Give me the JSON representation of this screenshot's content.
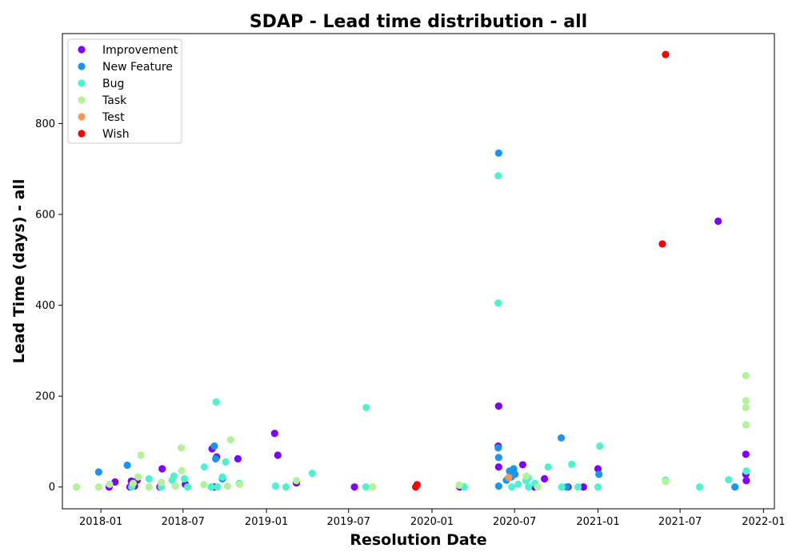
{
  "chart_data": {
    "type": "scatter",
    "title": "SDAP - Lead time distribution - all",
    "xlabel": "Resolution Date",
    "ylabel": "Lead Time (days) - all",
    "x_type": "date",
    "xlim": [
      "2017-10-08",
      "2022-01-25"
    ],
    "ylim": [
      -48,
      998
    ],
    "x_ticks": [
      {
        "value": "2018-01-01",
        "label": "2018-01"
      },
      {
        "value": "2018-07-01",
        "label": "2018-07"
      },
      {
        "value": "2019-01-01",
        "label": "2019-01"
      },
      {
        "value": "2019-07-01",
        "label": "2019-07"
      },
      {
        "value": "2020-01-01",
        "label": "2020-01"
      },
      {
        "value": "2020-07-01",
        "label": "2020-07"
      },
      {
        "value": "2021-01-01",
        "label": "2021-01"
      },
      {
        "value": "2021-07-01",
        "label": "2021-07"
      },
      {
        "value": "2022-01-01",
        "label": "2022-01"
      }
    ],
    "y_ticks": [
      {
        "value": 0,
        "label": "0"
      },
      {
        "value": 200,
        "label": "200"
      },
      {
        "value": 400,
        "label": "400"
      },
      {
        "value": 600,
        "label": "600"
      },
      {
        "value": 800,
        "label": "800"
      }
    ],
    "grid": false,
    "legend_position": "top-left",
    "series": [
      {
        "name": "Improvement",
        "color": "#8000ff",
        "points": [
          [
            "2018-01-19",
            0
          ],
          [
            "2018-02-01",
            11
          ],
          [
            "2018-03-06",
            0
          ],
          [
            "2018-03-09",
            13
          ],
          [
            "2018-03-16",
            2
          ],
          [
            "2018-03-22",
            15
          ],
          [
            "2018-05-11",
            0
          ],
          [
            "2018-05-16",
            40
          ],
          [
            "2018-07-06",
            6
          ],
          [
            "2018-09-03",
            84
          ],
          [
            "2018-09-13",
            66
          ],
          [
            "2018-09-08",
            0
          ],
          [
            "2018-10-30",
            62
          ],
          [
            "2019-01-19",
            118
          ],
          [
            "2019-01-26",
            70
          ],
          [
            "2019-03-08",
            9
          ],
          [
            "2019-07-14",
            0
          ],
          [
            "2020-03-02",
            0
          ],
          [
            "2020-05-26",
            90
          ],
          [
            "2020-05-27",
            178
          ],
          [
            "2020-05-27",
            44
          ],
          [
            "2020-07-19",
            49
          ],
          [
            "2020-08-14",
            0
          ],
          [
            "2020-09-05",
            18
          ],
          [
            "2020-10-27",
            0
          ],
          [
            "2020-11-30",
            0
          ],
          [
            "2021-01-01",
            40
          ],
          [
            "2021-09-23",
            585
          ],
          [
            "2021-11-23",
            72
          ],
          [
            "2021-11-23",
            28
          ],
          [
            "2021-11-24",
            14
          ]
        ]
      },
      {
        "name": "New Feature",
        "color": "#1996f3",
        "points": [
          [
            "2017-12-27",
            33
          ],
          [
            "2018-02-28",
            48
          ],
          [
            "2018-09-08",
            90
          ],
          [
            "2018-09-11",
            62
          ],
          [
            "2018-09-26",
            18
          ],
          [
            "2020-05-27",
            735
          ],
          [
            "2020-05-26",
            86
          ],
          [
            "2020-05-27",
            65
          ],
          [
            "2020-05-27",
            2
          ],
          [
            "2020-06-13",
            15
          ],
          [
            "2020-06-20",
            35
          ],
          [
            "2020-06-24",
            22
          ],
          [
            "2020-06-29",
            40
          ],
          [
            "2020-07-02",
            28
          ],
          [
            "2020-10-12",
            108
          ],
          [
            "2020-10-24",
            0
          ],
          [
            "2021-01-03",
            28
          ],
          [
            "2021-10-30",
            0
          ]
        ]
      },
      {
        "name": "Bug",
        "color": "#4df3ce",
        "points": [
          [
            "2018-03-10",
            0
          ],
          [
            "2018-04-17",
            18
          ],
          [
            "2018-05-14",
            0
          ],
          [
            "2018-06-07",
            15
          ],
          [
            "2018-06-11",
            24
          ],
          [
            "2018-07-04",
            18
          ],
          [
            "2018-07-11",
            0
          ],
          [
            "2018-08-17",
            44
          ],
          [
            "2018-09-01",
            0
          ],
          [
            "2018-09-12",
            187
          ],
          [
            "2018-09-15",
            0
          ],
          [
            "2018-09-26",
            22
          ],
          [
            "2018-10-03",
            55
          ],
          [
            "2018-11-02",
            8
          ],
          [
            "2019-01-21",
            2
          ],
          [
            "2019-02-13",
            0
          ],
          [
            "2019-04-12",
            30
          ],
          [
            "2019-08-09",
            175
          ],
          [
            "2019-08-08",
            0
          ],
          [
            "2020-03-12",
            0
          ],
          [
            "2020-05-26",
            685
          ],
          [
            "2020-05-26",
            405
          ],
          [
            "2020-06-25",
            0
          ],
          [
            "2020-07-09",
            6
          ],
          [
            "2020-07-26",
            14
          ],
          [
            "2020-07-31",
            20
          ],
          [
            "2020-08-01",
            0
          ],
          [
            "2020-08-15",
            8
          ],
          [
            "2020-09-13",
            44
          ],
          [
            "2020-10-13",
            0
          ],
          [
            "2020-11-04",
            50
          ],
          [
            "2020-11-18",
            0
          ],
          [
            "2021-01-01",
            0
          ],
          [
            "2021-01-05",
            90
          ],
          [
            "2021-05-30",
            15
          ],
          [
            "2021-08-13",
            0
          ],
          [
            "2021-10-16",
            16
          ],
          [
            "2021-11-24",
            35
          ]
        ]
      },
      {
        "name": "Task",
        "color": "#b2f396",
        "points": [
          [
            "2017-11-08",
            0
          ],
          [
            "2017-12-27",
            0
          ],
          [
            "2018-01-20",
            6
          ],
          [
            "2018-03-13",
            8
          ],
          [
            "2018-03-24",
            22
          ],
          [
            "2018-03-30",
            70
          ],
          [
            "2018-04-17",
            0
          ],
          [
            "2018-05-14",
            10
          ],
          [
            "2018-06-14",
            2
          ],
          [
            "2018-06-27",
            86
          ],
          [
            "2018-06-28",
            36
          ],
          [
            "2018-08-16",
            5
          ],
          [
            "2018-10-07",
            2
          ],
          [
            "2018-10-14",
            104
          ],
          [
            "2018-11-03",
            6
          ],
          [
            "2019-03-08",
            14
          ],
          [
            "2019-08-23",
            0
          ],
          [
            "2020-03-01",
            4
          ],
          [
            "2020-07-27",
            24
          ],
          [
            "2020-08-21",
            0
          ],
          [
            "2021-05-30",
            12
          ],
          [
            "2021-11-23",
            245
          ],
          [
            "2021-11-23",
            190
          ],
          [
            "2021-11-23",
            175
          ],
          [
            "2021-11-23",
            137
          ]
        ]
      },
      {
        "name": "Test",
        "color": "#ff964f",
        "points": [
          [
            "2020-06-18",
            21
          ]
        ]
      },
      {
        "name": "Wish",
        "color": "#ff0000",
        "points": [
          [
            "2019-11-26",
            0
          ],
          [
            "2019-11-29",
            5
          ],
          [
            "2021-05-23",
            535
          ],
          [
            "2021-05-30",
            952
          ]
        ]
      }
    ]
  }
}
